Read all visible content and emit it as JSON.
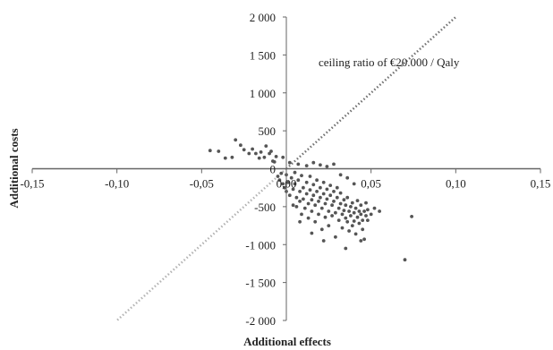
{
  "chart_data": {
    "type": "scatter",
    "title": "",
    "xlabel": "Additional effects",
    "ylabel": "Additional costs",
    "xlim": [
      -0.15,
      0.15
    ],
    "ylim": [
      -2000,
      2000
    ],
    "x_ticks": [
      -0.15,
      -0.1,
      -0.05,
      0.0,
      0.05,
      0.1,
      0.15
    ],
    "x_tick_labels": [
      "-0,15",
      "-0,10",
      "-0,05",
      "0,00",
      "0,05",
      "0,10",
      "0,15"
    ],
    "y_ticks": [
      2000,
      1500,
      1000,
      500,
      0,
      -500,
      -1000,
      -1500,
      -2000
    ],
    "y_tick_labels": [
      "2 000",
      "1 500",
      "1 000",
      "500",
      "0",
      "-500",
      "-1 000",
      "-1 500",
      "-2 000"
    ],
    "grid": false,
    "annotation": "ceiling ratio of €20.000 / Qaly",
    "ceiling_ratio": 20000,
    "colors": {
      "points": "#555555",
      "ceiling_upper": "#707070",
      "ceiling_lower": "#b3b3b3",
      "axes": "#666666"
    },
    "series": [
      {
        "points": [
          [
            -0.045,
            240
          ],
          [
            -0.04,
            230
          ],
          [
            -0.036,
            140
          ],
          [
            -0.032,
            150
          ],
          [
            -0.03,
            380
          ],
          [
            -0.027,
            310
          ],
          [
            -0.025,
            250
          ],
          [
            -0.022,
            200
          ],
          [
            -0.02,
            260
          ],
          [
            -0.018,
            200
          ],
          [
            -0.016,
            140
          ],
          [
            -0.015,
            220
          ],
          [
            -0.013,
            150
          ],
          [
            -0.012,
            300
          ],
          [
            -0.01,
            200
          ],
          [
            -0.009,
            230
          ],
          [
            -0.008,
            100
          ],
          [
            -0.007,
            90
          ],
          [
            -0.006,
            160
          ],
          [
            -0.005,
            -100
          ],
          [
            -0.004,
            -150
          ],
          [
            -0.003,
            -60
          ],
          [
            -0.002,
            -200
          ],
          [
            -0.002,
            150
          ],
          [
            -0.001,
            -250
          ],
          [
            0.0,
            -300
          ],
          [
            0.0,
            -80
          ],
          [
            0.001,
            -180
          ],
          [
            0.002,
            80
          ],
          [
            0.002,
            -350
          ],
          [
            0.003,
            -120
          ],
          [
            0.004,
            -270
          ],
          [
            0.004,
            -480
          ],
          [
            0.005,
            -50
          ],
          [
            0.005,
            -200
          ],
          [
            0.006,
            -380
          ],
          [
            0.006,
            -500
          ],
          [
            0.007,
            60
          ],
          [
            0.007,
            -150
          ],
          [
            0.008,
            -300
          ],
          [
            0.008,
            -430
          ],
          [
            0.009,
            -600
          ],
          [
            0.009,
            -90
          ],
          [
            0.01,
            -250
          ],
          [
            0.01,
            -400
          ],
          [
            0.011,
            -520
          ],
          [
            0.012,
            -180
          ],
          [
            0.012,
            -330
          ],
          [
            0.013,
            -460
          ],
          [
            0.013,
            -650
          ],
          [
            0.014,
            -100
          ],
          [
            0.014,
            -280
          ],
          [
            0.015,
            -410
          ],
          [
            0.015,
            -560
          ],
          [
            0.016,
            -210
          ],
          [
            0.016,
            -350
          ],
          [
            0.017,
            -480
          ],
          [
            0.017,
            -700
          ],
          [
            0.018,
            -150
          ],
          [
            0.018,
            -300
          ],
          [
            0.019,
            -430
          ],
          [
            0.019,
            -600
          ],
          [
            0.02,
            -250
          ],
          [
            0.02,
            -380
          ],
          [
            0.021,
            -520
          ],
          [
            0.021,
            -800
          ],
          [
            0.022,
            -180
          ],
          [
            0.022,
            -330
          ],
          [
            0.023,
            -460
          ],
          [
            0.023,
            -640
          ],
          [
            0.024,
            -270
          ],
          [
            0.024,
            -400
          ],
          [
            0.025,
            -560
          ],
          [
            0.025,
            -750
          ],
          [
            0.026,
            -220
          ],
          [
            0.026,
            -350
          ],
          [
            0.027,
            -480
          ],
          [
            0.027,
            -620
          ],
          [
            0.028,
            -300
          ],
          [
            0.028,
            -430
          ],
          [
            0.029,
            -580
          ],
          [
            0.029,
            -900
          ],
          [
            0.03,
            -250
          ],
          [
            0.03,
            -380
          ],
          [
            0.031,
            -520
          ],
          [
            0.031,
            -680
          ],
          [
            0.032,
            -320
          ],
          [
            0.032,
            -460
          ],
          [
            0.033,
            -600
          ],
          [
            0.033,
            -780
          ],
          [
            0.034,
            -410
          ],
          [
            0.034,
            -550
          ],
          [
            0.035,
            -480
          ],
          [
            0.035,
            -650
          ],
          [
            0.036,
            -700
          ],
          [
            0.036,
            -380
          ],
          [
            0.037,
            -560
          ],
          [
            0.037,
            -820
          ],
          [
            0.038,
            -500
          ],
          [
            0.038,
            -620
          ],
          [
            0.039,
            -750
          ],
          [
            0.039,
            -450
          ],
          [
            0.04,
            -580
          ],
          [
            0.04,
            -690
          ],
          [
            0.041,
            -520
          ],
          [
            0.041,
            -860
          ],
          [
            0.042,
            -640
          ],
          [
            0.042,
            -420
          ],
          [
            0.043,
            -560
          ],
          [
            0.043,
            -720
          ],
          [
            0.044,
            -600
          ],
          [
            0.044,
            -480
          ],
          [
            0.045,
            -680
          ],
          [
            0.045,
            -800
          ],
          [
            0.046,
            -560
          ],
          [
            0.046,
            -930
          ],
          [
            0.047,
            -620
          ],
          [
            0.047,
            -450
          ],
          [
            0.048,
            -540
          ],
          [
            0.048,
            -680
          ],
          [
            0.05,
            -600
          ],
          [
            0.052,
            -520
          ],
          [
            0.055,
            -560
          ],
          [
            0.016,
            80
          ],
          [
            0.02,
            50
          ],
          [
            0.024,
            30
          ],
          [
            0.028,
            60
          ],
          [
            0.032,
            -80
          ],
          [
            0.036,
            -120
          ],
          [
            0.04,
            -200
          ],
          [
            0.012,
            40
          ],
          [
            0.008,
            -700
          ],
          [
            0.015,
            -850
          ],
          [
            0.022,
            -950
          ],
          [
            0.035,
            -1050
          ],
          [
            0.044,
            -950
          ],
          [
            0.07,
            -1200
          ],
          [
            0.074,
            -630
          ]
        ]
      }
    ]
  }
}
